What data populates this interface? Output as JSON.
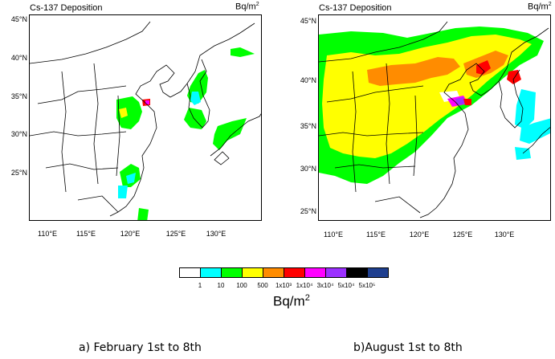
{
  "panels": [
    {
      "title": "Cs-137 Deposition",
      "unit": "Bq/m",
      "unit_exp": "2",
      "lat_labels": [
        "45°N",
        "40°N",
        "35°N",
        "30°N",
        "25°N"
      ],
      "lon_labels": [
        "110°E",
        "115°E",
        "120°E",
        "125°E",
        "130°E"
      ],
      "caption": "a) February 1st to 8th"
    },
    {
      "title": "Cs-137 Deposition",
      "unit": "Bq/m",
      "unit_exp": "2",
      "lat_labels": [
        "45°N",
        "40°N",
        "35°N",
        "30°N",
        "25°N"
      ],
      "lon_labels": [
        "110°E",
        "115°E",
        "120°E",
        "125°E",
        "130°E"
      ],
      "caption": "b)August 1st to 8th"
    }
  ],
  "legend": {
    "colors": [
      "#ffffff",
      "#00ffff",
      "#00ff00",
      "#ffff00",
      "#ff8c00",
      "#ff0000",
      "#ff00ff",
      "#9b30ff",
      "#000000",
      "#1f3f8f"
    ],
    "ticks": [
      "1",
      "10",
      "100",
      "500",
      "1x10³",
      "1x10⁴",
      "3x10⁴",
      "5x10⁴",
      "5x10⁵"
    ],
    "unit": "Bq/m",
    "unit_exp": "2"
  }
}
